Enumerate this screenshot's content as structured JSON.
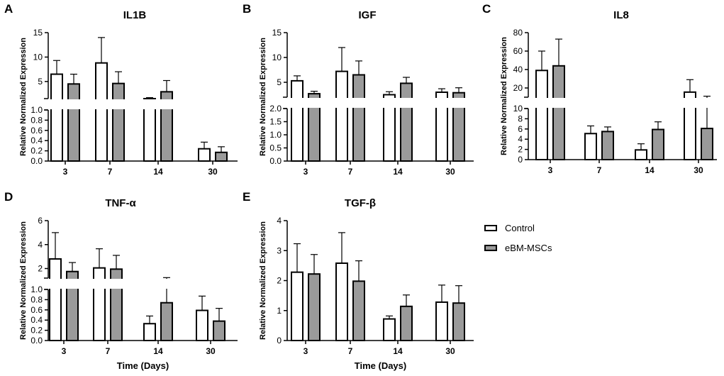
{
  "panel_letters": [
    "A",
    "B",
    "C",
    "D",
    "E"
  ],
  "legend": {
    "items": [
      {
        "label": "Control",
        "color": "#ffffff"
      },
      {
        "label": "eBM-MSCs",
        "color": "#9a9a9a"
      }
    ]
  },
  "chart_data": [
    {
      "type": "bar",
      "title": "IL1B",
      "xlabel": "",
      "ylabel": "Relative Normalized Expression",
      "categories": [
        "3",
        "7",
        "14",
        "30"
      ],
      "axis_break": true,
      "ylim_lower": [
        0,
        1.0
      ],
      "ylim_upper": [
        1.5,
        15
      ],
      "yticks_lower": [
        "0.0",
        "0.2",
        "0.4",
        "0.6",
        "0.8",
        "1.0"
      ],
      "yticks_upper": [
        "5",
        "10",
        "15"
      ],
      "series": [
        {
          "name": "Control",
          "values": [
            6.5,
            8.8,
            1.2,
            0.24
          ],
          "errors": [
            2.8,
            5.2,
            0.5,
            0.13
          ]
        },
        {
          "name": "eBM-MSCs",
          "values": [
            4.5,
            4.6,
            2.9,
            0.17
          ],
          "errors": [
            2.0,
            2.4,
            2.3,
            0.11
          ]
        }
      ]
    },
    {
      "type": "bar",
      "title": "IGF",
      "xlabel": "",
      "ylabel": "Relative Normalized Expression",
      "categories": [
        "3",
        "7",
        "14",
        "30"
      ],
      "axis_break": true,
      "ylim_lower": [
        0,
        2.0
      ],
      "ylim_upper": [
        2.0,
        15
      ],
      "yticks_lower": [
        "0.0",
        "0.5",
        "1.0",
        "1.5",
        "2.0"
      ],
      "yticks_upper": [
        "5",
        "10",
        "15"
      ],
      "series": [
        {
          "name": "Control",
          "values": [
            5.3,
            7.2,
            2.5,
            3.0
          ],
          "errors": [
            1.0,
            4.8,
            0.6,
            0.7
          ]
        },
        {
          "name": "eBM-MSCs",
          "values": [
            2.7,
            6.5,
            4.8,
            2.9
          ],
          "errors": [
            0.5,
            2.8,
            1.2,
            1.0
          ]
        }
      ]
    },
    {
      "type": "bar",
      "title": "IL8",
      "xlabel": "",
      "ylabel": "Relative Normalized Expression",
      "categories": [
        "3",
        "7",
        "14",
        "30"
      ],
      "axis_break": true,
      "ylim_lower": [
        0,
        10
      ],
      "ylim_upper": [
        10,
        80
      ],
      "yticks_lower": [
        "0",
        "2",
        "4",
        "6",
        "8",
        "10"
      ],
      "yticks_upper": [
        "20",
        "40",
        "60",
        "80"
      ],
      "series": [
        {
          "name": "Control",
          "values": [
            39,
            5.1,
            1.9,
            15.5
          ],
          "errors": [
            21,
            1.5,
            1.2,
            13.5
          ]
        },
        {
          "name": "eBM-MSCs",
          "values": [
            44,
            5.5,
            5.9,
            6.1
          ],
          "errors": [
            29,
            0.9,
            1.5,
            5.0
          ]
        }
      ]
    },
    {
      "type": "bar",
      "title": "TNF-α",
      "xlabel": "Time (Days)",
      "ylabel": "Relative Normalized Expression",
      "categories": [
        "3",
        "7",
        "14",
        "30"
      ],
      "axis_break": true,
      "ylim_lower": [
        0,
        1.0
      ],
      "ylim_upper": [
        1.2,
        6
      ],
      "yticks_lower": [
        "0.0",
        "0.2",
        "0.4",
        "0.6",
        "0.8",
        "1.0"
      ],
      "yticks_upper": [
        "2",
        "4",
        "6"
      ],
      "series": [
        {
          "name": "Control",
          "values": [
            2.8,
            2.05,
            0.33,
            0.59
          ],
          "errors": [
            2.2,
            1.6,
            0.15,
            0.28
          ]
        },
        {
          "name": "eBM-MSCs",
          "values": [
            1.75,
            1.95,
            0.74,
            0.38
          ],
          "errors": [
            0.75,
            1.15,
            0.5,
            0.25
          ]
        }
      ]
    },
    {
      "type": "bar",
      "title": "TGF-β",
      "xlabel": "Time (Days)",
      "ylabel": "Relative Normalized Expression",
      "categories": [
        "3",
        "7",
        "14",
        "30"
      ],
      "axis_break": false,
      "ylim": [
        0,
        4
      ],
      "yticks": [
        "0",
        "1",
        "2",
        "3",
        "4"
      ],
      "series": [
        {
          "name": "Control",
          "values": [
            2.28,
            2.58,
            0.72,
            1.28
          ],
          "errors": [
            0.95,
            1.02,
            0.1,
            0.57
          ]
        },
        {
          "name": "eBM-MSCs",
          "values": [
            2.22,
            1.98,
            1.14,
            1.25
          ],
          "errors": [
            0.65,
            0.68,
            0.38,
            0.58
          ]
        }
      ]
    }
  ]
}
